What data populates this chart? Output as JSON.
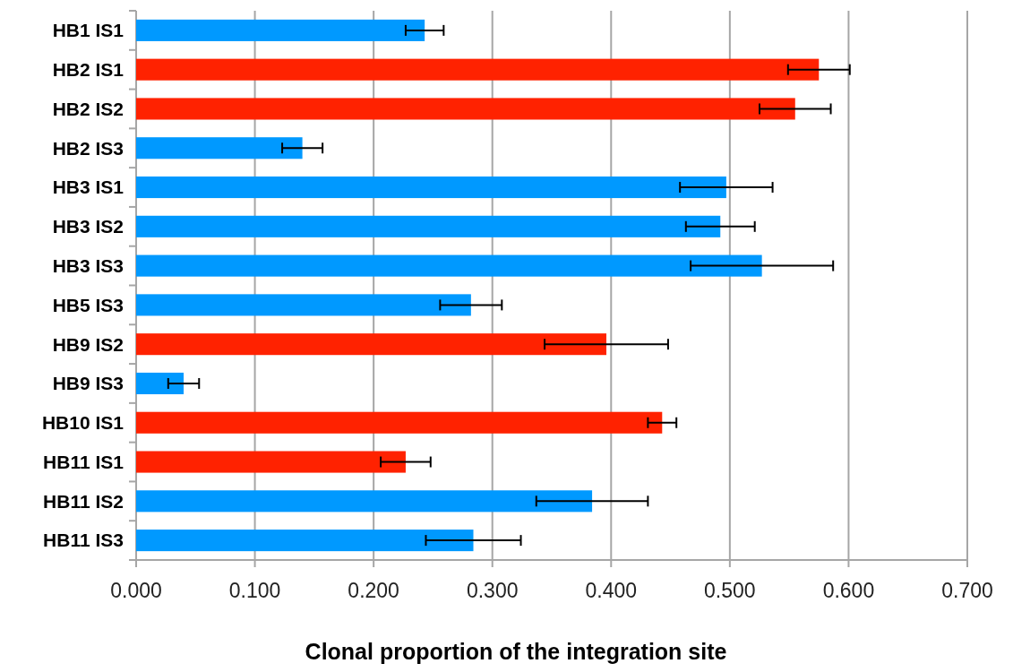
{
  "chart_data": {
    "type": "bar",
    "orientation": "horizontal",
    "xlabel": "Clonal proportion of the integration site",
    "categories": [
      "HB1 IS1",
      "HB2 IS1",
      "HB2 IS2",
      "HB2 IS3",
      "HB3 IS1",
      "HB3 IS2",
      "HB3 IS3",
      "HB5 IS3",
      "HB9 IS2",
      "HB9 IS3",
      "HB10 IS1",
      "HB11 IS1",
      "HB11 IS2",
      "HB11 IS3"
    ],
    "values": [
      0.243,
      0.575,
      0.555,
      0.14,
      0.497,
      0.492,
      0.527,
      0.282,
      0.396,
      0.04,
      0.443,
      0.227,
      0.384,
      0.284
    ],
    "errors": [
      0.016,
      0.026,
      0.03,
      0.017,
      0.039,
      0.029,
      0.06,
      0.026,
      0.052,
      0.013,
      0.012,
      0.021,
      0.047,
      0.04
    ],
    "colors": [
      "#0099ff",
      "#ff2200",
      "#ff2200",
      "#0099ff",
      "#0099ff",
      "#0099ff",
      "#0099ff",
      "#0099ff",
      "#ff2200",
      "#0099ff",
      "#ff2200",
      "#ff2200",
      "#0099ff",
      "#0099ff"
    ],
    "xlim": [
      0,
      0.7
    ],
    "xticks": [
      {
        "value": 0,
        "label": "0.000"
      },
      {
        "value": 0.1,
        "label": "0.100"
      },
      {
        "value": 0.2,
        "label": "0.200"
      },
      {
        "value": 0.3,
        "label": "0.300"
      },
      {
        "value": 0.4,
        "label": "0.400"
      },
      {
        "value": 0.5,
        "label": "0.500"
      },
      {
        "value": 0.6,
        "label": "0.600"
      },
      {
        "value": 0.7,
        "label": "0.700"
      }
    ],
    "grid": "x"
  }
}
